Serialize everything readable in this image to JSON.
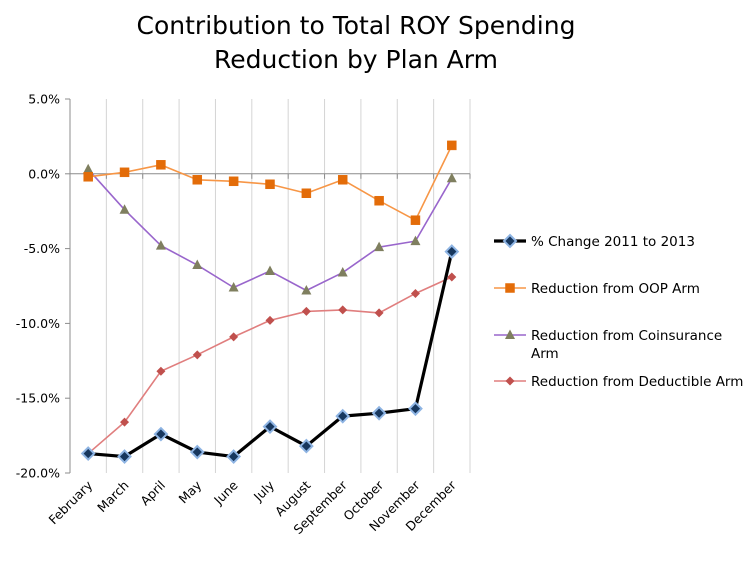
{
  "chart_data": {
    "type": "line",
    "title": [
      "Contribution to Total ROY Spending",
      "Reduction by Plan Arm"
    ],
    "xlabel": "",
    "ylabel": "",
    "categories": [
      "February",
      "March",
      "April",
      "May",
      "June",
      "July",
      "August",
      "September",
      "October",
      "November",
      "December"
    ],
    "y_ticks": [
      "5.0%",
      "0.0%",
      "-5.0%",
      "-10.0%",
      "-15.0%",
      "-20.0%"
    ],
    "y_tick_values": [
      5,
      0,
      -5,
      -10,
      -15,
      -20
    ],
    "ylim": [
      -20,
      5
    ],
    "grid": "vertical",
    "legend_position": "right",
    "series": [
      {
        "name": "% Change 2011 to 2013",
        "line_color": "#000000",
        "marker": "diamond",
        "marker_fill": "#17375e",
        "marker_outline": "#8eb4e3",
        "values": [
          -18.7,
          -18.9,
          -17.4,
          -18.6,
          -18.9,
          -16.9,
          -18.2,
          -16.2,
          -16.0,
          -15.7,
          -5.2
        ]
      },
      {
        "name": "Reduction from OOP Arm",
        "line_color": "#f79646",
        "marker": "square",
        "marker_fill": "#e36c09",
        "values": [
          -0.2,
          0.1,
          0.6,
          -0.4,
          -0.5,
          -0.7,
          -1.3,
          -0.4,
          -1.8,
          -3.1,
          1.9
        ]
      },
      {
        "name": "Reduction from Coinsurance Arm",
        "line_color": "#9966cc",
        "marker": "triangle",
        "marker_fill": "#7f7f5f",
        "values": [
          0.3,
          -2.4,
          -4.8,
          -6.1,
          -7.6,
          -6.5,
          -7.8,
          -6.6,
          -4.9,
          -4.5,
          -0.3
        ]
      },
      {
        "name": "Reduction from Deductible Arm",
        "line_color": "#e07e7e",
        "marker": "diamond",
        "marker_fill": "#c0504d",
        "values": [
          -18.7,
          -16.6,
          -13.2,
          -12.1,
          -10.9,
          -9.8,
          -9.2,
          -9.1,
          -9.3,
          -8.0,
          -6.9
        ]
      }
    ],
    "legend": [
      {
        "label_lines": [
          "% Change 2011 to 2013"
        ]
      },
      {
        "label_lines": [
          "Reduction from OOP Arm"
        ]
      },
      {
        "label_lines": [
          "Reduction from Coinsurance",
          "Arm"
        ]
      },
      {
        "label_lines": [
          "Reduction from Deductible Arm"
        ]
      }
    ]
  }
}
